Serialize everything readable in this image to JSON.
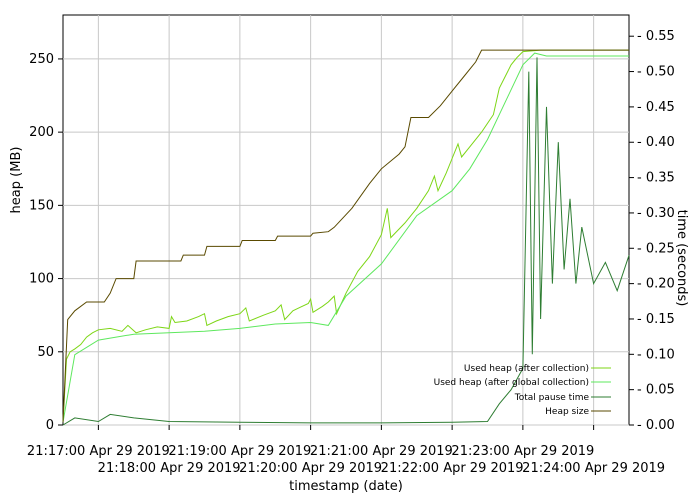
{
  "chart_data": {
    "type": "line",
    "xlabel": "timestamp (date)",
    "ylabel_left": "heap (MB)",
    "ylabel_right": "time (seconds)",
    "x_start": "21:16:30",
    "x_end": "21:24:30",
    "ylim_left": [
      0,
      280
    ],
    "ylim_right": [
      0,
      0.58
    ],
    "grid": true,
    "legend_placement": "bottom-right",
    "x_ticks": [
      {
        "time": "21:17:00",
        "label": "21:17:00 Apr 29 2019",
        "row": 0
      },
      {
        "time": "21:18:00",
        "label": "21:18:00 Apr 29 2019",
        "row": 1
      },
      {
        "time": "21:19:00",
        "label": "21:19:00 Apr 29 2019",
        "row": 0
      },
      {
        "time": "21:20:00",
        "label": "21:20:00 Apr 29 2019",
        "row": 1
      },
      {
        "time": "21:21:00",
        "label": "21:21:00 Apr 29 2019",
        "row": 0
      },
      {
        "time": "21:22:00",
        "label": "21:22:00 Apr 29 2019",
        "row": 1
      },
      {
        "time": "21:23:00",
        "label": "21:23:00 Apr 29 2019",
        "row": 0
      },
      {
        "time": "21:24:00",
        "label": "21:24:00 Apr 29 2019",
        "row": 1
      }
    ],
    "y_ticks_left": [
      0,
      50,
      100,
      150,
      200,
      250
    ],
    "y_ticks_right": [
      0.0,
      0.05,
      0.1,
      0.15,
      0.2,
      0.25,
      0.3,
      0.35,
      0.4,
      0.45,
      0.5,
      0.55
    ],
    "series": [
      {
        "name": "Used heap (after collection)",
        "color": "#7dd616",
        "axis": "left",
        "points": [
          [
            "21:16:30",
            2
          ],
          [
            "21:16:33",
            45
          ],
          [
            "21:16:36",
            50
          ],
          [
            "21:16:40",
            52
          ],
          [
            "21:16:45",
            55
          ],
          [
            "21:16:50",
            60
          ],
          [
            "21:16:55",
            63
          ],
          [
            "21:17:00",
            65
          ],
          [
            "21:17:10",
            66
          ],
          [
            "21:17:20",
            64
          ],
          [
            "21:17:25",
            68
          ],
          [
            "21:17:32",
            63
          ],
          [
            "21:17:40",
            65
          ],
          [
            "21:17:50",
            67
          ],
          [
            "21:18:00",
            66
          ],
          [
            "21:18:02",
            74
          ],
          [
            "21:18:05",
            70
          ],
          [
            "21:18:15",
            71
          ],
          [
            "21:18:25",
            74
          ],
          [
            "21:18:30",
            76
          ],
          [
            "21:18:32",
            68
          ],
          [
            "21:18:40",
            71
          ],
          [
            "21:18:50",
            74
          ],
          [
            "21:19:00",
            76
          ],
          [
            "21:19:05",
            80
          ],
          [
            "21:19:08",
            71
          ],
          [
            "21:19:20",
            75
          ],
          [
            "21:19:30",
            78
          ],
          [
            "21:19:35",
            82
          ],
          [
            "21:19:38",
            72
          ],
          [
            "21:19:45",
            78
          ],
          [
            "21:19:50",
            80
          ],
          [
            "21:19:58",
            83
          ],
          [
            "21:20:00",
            86
          ],
          [
            "21:20:02",
            77
          ],
          [
            "21:20:10",
            81
          ],
          [
            "21:20:15",
            84
          ],
          [
            "21:20:20",
            88
          ],
          [
            "21:20:22",
            76
          ],
          [
            "21:20:30",
            90
          ],
          [
            "21:20:40",
            105
          ],
          [
            "21:20:50",
            115
          ],
          [
            "21:21:00",
            130
          ],
          [
            "21:21:05",
            148
          ],
          [
            "21:21:08",
            128
          ],
          [
            "21:21:20",
            138
          ],
          [
            "21:21:30",
            148
          ],
          [
            "21:21:40",
            160
          ],
          [
            "21:21:45",
            170
          ],
          [
            "21:21:48",
            160
          ],
          [
            "21:21:55",
            172
          ],
          [
            "21:22:00",
            182
          ],
          [
            "21:22:05",
            192
          ],
          [
            "21:22:08",
            183
          ],
          [
            "21:22:15",
            190
          ],
          [
            "21:22:25",
            200
          ],
          [
            "21:22:35",
            212
          ],
          [
            "21:22:40",
            230
          ],
          [
            "21:22:45",
            238
          ],
          [
            "21:22:50",
            246
          ],
          [
            "21:22:55",
            251
          ],
          [
            "21:23:00",
            255
          ],
          [
            "21:23:15",
            256
          ],
          [
            "21:24:30",
            256
          ]
        ]
      },
      {
        "name": "Used heap (after global collection)",
        "color": "#5ee85e",
        "axis": "left",
        "points": [
          [
            "21:16:30",
            2
          ],
          [
            "21:16:40",
            48
          ],
          [
            "21:17:00",
            58
          ],
          [
            "21:17:30",
            62
          ],
          [
            "21:18:00",
            63
          ],
          [
            "21:18:30",
            64
          ],
          [
            "21:19:00",
            66
          ],
          [
            "21:19:30",
            69
          ],
          [
            "21:20:00",
            70
          ],
          [
            "21:20:15",
            68
          ],
          [
            "21:20:30",
            88
          ],
          [
            "21:21:00",
            110
          ],
          [
            "21:21:30",
            143
          ],
          [
            "21:22:00",
            160
          ],
          [
            "21:22:15",
            175
          ],
          [
            "21:22:30",
            195
          ],
          [
            "21:23:00",
            246
          ],
          [
            "21:23:10",
            254
          ],
          [
            "21:23:20",
            252
          ],
          [
            "21:24:30",
            252
          ]
        ]
      },
      {
        "name": "Total pause time",
        "color": "#2e7d32",
        "axis": "right",
        "points": [
          [
            "21:16:30",
            0.0
          ],
          [
            "21:16:40",
            0.01
          ],
          [
            "21:17:00",
            0.005
          ],
          [
            "21:17:10",
            0.015
          ],
          [
            "21:17:30",
            0.01
          ],
          [
            "21:18:00",
            0.005
          ],
          [
            "21:19:00",
            0.004
          ],
          [
            "21:20:00",
            0.003
          ],
          [
            "21:21:00",
            0.003
          ],
          [
            "21:22:00",
            0.004
          ],
          [
            "21:22:30",
            0.005
          ],
          [
            "21:22:40",
            0.03
          ],
          [
            "21:22:50",
            0.05
          ],
          [
            "21:23:00",
            0.08
          ],
          [
            "21:23:05",
            0.5
          ],
          [
            "21:23:08",
            0.1
          ],
          [
            "21:23:12",
            0.52
          ],
          [
            "21:23:15",
            0.15
          ],
          [
            "21:23:20",
            0.45
          ],
          [
            "21:23:25",
            0.2
          ],
          [
            "21:23:30",
            0.4
          ],
          [
            "21:23:35",
            0.22
          ],
          [
            "21:23:40",
            0.32
          ],
          [
            "21:23:45",
            0.2
          ],
          [
            "21:23:50",
            0.28
          ],
          [
            "21:24:00",
            0.2
          ],
          [
            "21:24:10",
            0.23
          ],
          [
            "21:24:20",
            0.19
          ],
          [
            "21:24:30",
            0.24
          ]
        ]
      },
      {
        "name": "Heap size",
        "color": "#5a4a00",
        "axis": "left",
        "points": [
          [
            "21:16:30",
            2
          ],
          [
            "21:16:34",
            72
          ],
          [
            "21:16:40",
            78
          ],
          [
            "21:16:50",
            84
          ],
          [
            "21:17:05",
            84
          ],
          [
            "21:17:10",
            90
          ],
          [
            "21:17:15",
            100
          ],
          [
            "21:17:30",
            100
          ],
          [
            "21:17:32",
            112
          ],
          [
            "21:18:10",
            112
          ],
          [
            "21:18:12",
            116
          ],
          [
            "21:18:30",
            116
          ],
          [
            "21:18:32",
            122
          ],
          [
            "21:19:00",
            122
          ],
          [
            "21:19:02",
            126
          ],
          [
            "21:19:30",
            126
          ],
          [
            "21:19:32",
            129
          ],
          [
            "21:20:00",
            129
          ],
          [
            "21:20:02",
            131
          ],
          [
            "21:20:15",
            132
          ],
          [
            "21:20:20",
            135
          ],
          [
            "21:20:35",
            148
          ],
          [
            "21:20:50",
            165
          ],
          [
            "21:21:00",
            175
          ],
          [
            "21:21:15",
            185
          ],
          [
            "21:21:20",
            190
          ],
          [
            "21:21:25",
            210
          ],
          [
            "21:21:40",
            210
          ],
          [
            "21:21:50",
            218
          ],
          [
            "21:22:00",
            228
          ],
          [
            "21:22:10",
            238
          ],
          [
            "21:22:20",
            248
          ],
          [
            "21:22:25",
            256
          ],
          [
            "21:24:30",
            256
          ]
        ]
      }
    ]
  }
}
